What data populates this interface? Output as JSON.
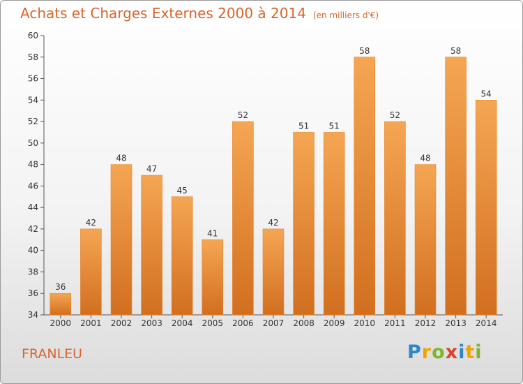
{
  "chart_data": {
    "type": "bar",
    "title": "Achats et Charges Externes 2000 à 2014",
    "unit": "(en milliers d'€)",
    "categories": [
      "2000",
      "2001",
      "2002",
      "2003",
      "2004",
      "2005",
      "2006",
      "2007",
      "2008",
      "2009",
      "2010",
      "2011",
      "2012",
      "2013",
      "2014"
    ],
    "values": [
      36,
      42,
      48,
      47,
      45,
      41,
      52,
      42,
      51,
      51,
      58,
      52,
      48,
      58,
      54
    ],
    "ylim": [
      34,
      60
    ],
    "yticks": [
      "34",
      "36",
      "38",
      "40",
      "42",
      "44",
      "46",
      "48",
      "50",
      "52",
      "54",
      "56",
      "58",
      "60"
    ],
    "grid": false,
    "bar_color_top": "#f5a653",
    "bar_color_bottom": "#d16f1f"
  },
  "footer": {
    "city": "FRANLEU",
    "logo": {
      "letters": [
        "P",
        "r",
        "o",
        "x",
        "i",
        "t",
        "i"
      ],
      "colors": [
        "#2e86c9",
        "#f0a400",
        "#7bb62b",
        "#e0402b",
        "#2e86c9",
        "#f0a400",
        "#7bb62b"
      ]
    }
  }
}
